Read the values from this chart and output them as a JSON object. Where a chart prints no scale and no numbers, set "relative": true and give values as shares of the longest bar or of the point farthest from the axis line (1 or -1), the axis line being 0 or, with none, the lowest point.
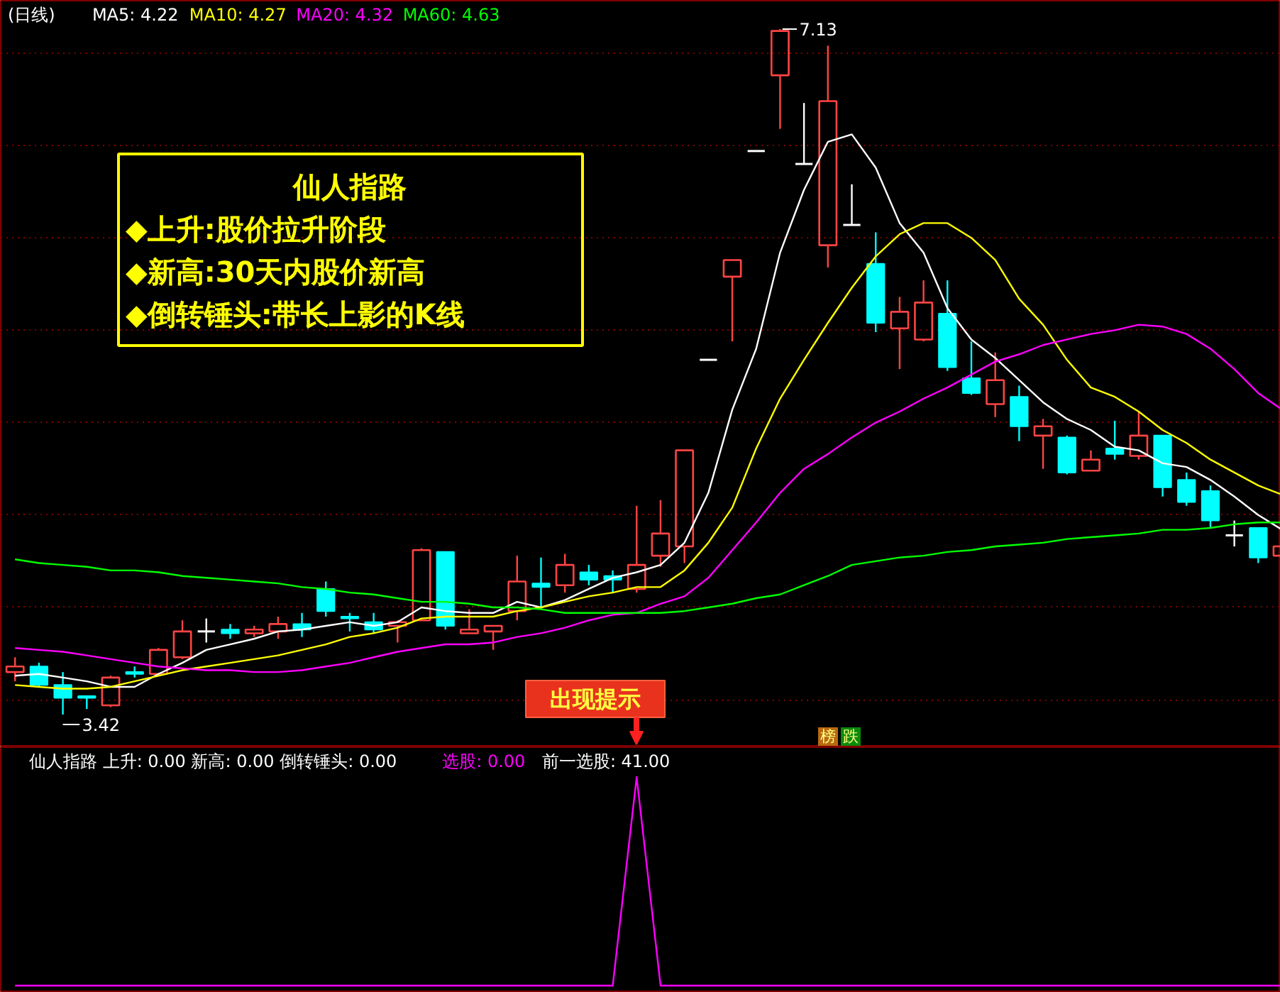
{
  "chart_data": [
    {
      "type": "candlestick",
      "title": "(日线)",
      "grid": "y",
      "categories": [
        null,
        null,
        null,
        null,
        null,
        null,
        null,
        null,
        null,
        null,
        null,
        null,
        null,
        null,
        null,
        null,
        null,
        null,
        null,
        null,
        null,
        null,
        null,
        null,
        null,
        null,
        null,
        null,
        null,
        null,
        null,
        null,
        null,
        null,
        null,
        null,
        null,
        null,
        null,
        null,
        null,
        null,
        null,
        null,
        null,
        null,
        null,
        null,
        null,
        null,
        null,
        null,
        null,
        null
      ],
      "ohlc": [
        [
          3.65,
          3.73,
          3.6,
          3.68
        ],
        [
          3.68,
          3.7,
          3.57,
          3.58
        ],
        [
          3.58,
          3.65,
          3.42,
          3.51
        ],
        [
          3.52,
          3.52,
          3.45,
          3.51
        ],
        [
          3.47,
          3.63,
          3.46,
          3.62
        ],
        [
          3.65,
          3.68,
          3.62,
          3.64
        ],
        [
          3.64,
          3.78,
          3.63,
          3.77
        ],
        [
          3.73,
          3.93,
          3.72,
          3.87
        ],
        [
          3.87,
          3.94,
          3.81,
          3.87
        ],
        [
          3.88,
          3.91,
          3.83,
          3.86
        ],
        [
          3.86,
          3.9,
          3.84,
          3.88
        ],
        [
          3.87,
          3.95,
          3.83,
          3.91
        ],
        [
          3.91,
          3.97,
          3.84,
          3.88
        ],
        [
          4.1,
          4.14,
          3.95,
          3.98
        ],
        [
          3.95,
          3.97,
          3.87,
          3.94
        ],
        [
          3.92,
          3.97,
          3.86,
          3.88
        ],
        [
          3.9,
          3.93,
          3.81,
          3.92
        ],
        [
          3.93,
          4.32,
          3.93,
          4.31
        ],
        [
          4.3,
          4.3,
          3.88,
          3.9
        ],
        [
          3.86,
          3.99,
          3.86,
          3.88
        ],
        [
          3.87,
          3.9,
          3.77,
          3.9
        ],
        [
          3.98,
          4.28,
          3.93,
          4.14
        ],
        [
          4.13,
          4.27,
          3.99,
          4.11
        ],
        [
          4.12,
          4.29,
          4.08,
          4.23
        ],
        [
          4.19,
          4.23,
          4.12,
          4.15
        ],
        [
          4.17,
          4.2,
          4.08,
          4.15
        ],
        [
          4.1,
          4.55,
          4.08,
          4.23
        ],
        [
          4.28,
          4.58,
          4.22,
          4.4
        ],
        [
          4.33,
          4.85,
          4.24,
          4.85
        ],
        [
          5.34,
          5.34,
          5.34,
          5.34
        ],
        [
          5.79,
          5.88,
          5.44,
          5.88
        ],
        [
          6.47,
          6.47,
          6.47,
          6.47
        ],
        [
          6.88,
          7.13,
          6.59,
          7.12
        ],
        [
          6.4,
          6.73,
          6.4,
          6.4
        ],
        [
          5.96,
          7.04,
          5.84,
          6.74
        ],
        [
          6.07,
          6.29,
          6.07,
          6.07
        ],
        [
          5.86,
          6.03,
          5.49,
          5.54
        ],
        [
          5.51,
          5.68,
          5.29,
          5.6
        ],
        [
          5.45,
          5.77,
          5.44,
          5.65
        ],
        [
          5.59,
          5.77,
          5.28,
          5.3
        ],
        [
          5.24,
          5.44,
          5.15,
          5.16
        ],
        [
          5.1,
          5.38,
          5.03,
          5.23
        ],
        [
          5.14,
          5.2,
          4.9,
          4.98
        ],
        [
          4.93,
          5.02,
          4.75,
          4.98
        ],
        [
          4.92,
          4.93,
          4.72,
          4.73
        ],
        [
          4.74,
          4.85,
          4.74,
          4.8
        ],
        [
          4.86,
          5.01,
          4.8,
          4.83
        ],
        [
          4.82,
          5.06,
          4.8,
          4.93
        ],
        [
          4.93,
          4.93,
          4.6,
          4.65
        ],
        [
          4.69,
          4.73,
          4.55,
          4.57
        ],
        [
          4.63,
          4.66,
          4.43,
          4.47
        ],
        [
          4.39,
          4.47,
          4.33,
          4.39
        ],
        [
          4.43,
          4.43,
          4.24,
          4.27
        ],
        [
          4.28,
          4.33,
          4.28,
          4.33
        ]
      ],
      "colors": [
        "#ff4444",
        "#00ffff",
        "#00ffff",
        "#00ffff",
        "#ff4444",
        "#00ffff",
        "#ff4444",
        "#ff4444",
        "#ffffff",
        "#00ffff",
        "#ff4444",
        "#ff4444",
        "#00ffff",
        "#00ffff",
        "#00ffff",
        "#00ffff",
        "#ff4444",
        "#ff4444",
        "#00ffff",
        "#ff4444",
        "#ff4444",
        "#ff4444",
        "#00ffff",
        "#ff4444",
        "#00ffff",
        "#00ffff",
        "#ff4444",
        "#ff4444",
        "#ff4444",
        "#ffffff",
        "#ff4444",
        "#ffffff",
        "#ff4444",
        "#ffffff",
        "#ff4444",
        "#ffffff",
        "#00ffff",
        "#ff4444",
        "#ff4444",
        "#00ffff",
        "#00ffff",
        "#ff4444",
        "#00ffff",
        "#ff4444",
        "#00ffff",
        "#ff4444",
        "#00ffff",
        "#ff4444",
        "#00ffff",
        "#00ffff",
        "#00ffff",
        "#ffffff",
        "#00ffff",
        "#ff4444"
      ],
      "yticks": [
        {
          "value": 3.5,
          "label": null
        },
        {
          "value": 4.0,
          "label": null
        },
        {
          "value": 4.5,
          "label": null
        },
        {
          "value": 5.0,
          "label": null
        },
        {
          "value": 5.5,
          "label": null
        },
        {
          "value": 6.0,
          "label": null
        },
        {
          "value": 6.5,
          "label": null
        },
        {
          "value": 7.0,
          "label": null
        }
      ],
      "series": [
        {
          "type": "line",
          "name": "MA5: 4.22",
          "color": "#ffffff",
          "values": [
            3.63,
            3.64,
            3.62,
            3.6,
            3.57,
            3.57,
            3.64,
            3.7,
            3.77,
            3.8,
            3.83,
            3.87,
            3.88,
            3.9,
            3.92,
            3.9,
            3.92,
            4.0,
            3.98,
            3.97,
            3.97,
            4.03,
            4.0,
            4.04,
            4.1,
            4.16,
            4.19,
            4.23,
            4.35,
            4.62,
            5.07,
            5.4,
            5.92,
            6.26,
            6.52,
            6.56,
            6.38,
            6.08,
            5.92,
            5.62,
            5.45,
            5.35,
            5.23,
            5.11,
            5.02,
            4.96,
            4.87,
            4.85,
            4.78,
            4.76,
            4.69,
            4.6,
            4.5,
            4.42
          ]
        },
        {
          "type": "line",
          "name": "MA10: 4.27",
          "color": "#ffff00",
          "values": [
            3.58,
            3.57,
            3.56,
            3.56,
            3.57,
            3.6,
            3.63,
            3.66,
            3.68,
            3.7,
            3.72,
            3.74,
            3.77,
            3.8,
            3.84,
            3.86,
            3.89,
            3.94,
            3.95,
            3.95,
            3.95,
            3.98,
            4.0,
            4.03,
            4.06,
            4.08,
            4.11,
            4.11,
            4.2,
            4.35,
            4.54,
            4.86,
            5.13,
            5.34,
            5.54,
            5.73,
            5.9,
            6.02,
            6.08,
            6.08,
            6.0,
            5.88,
            5.67,
            5.53,
            5.34,
            5.19,
            5.14,
            5.06,
            4.96,
            4.89,
            4.8,
            4.73,
            4.66,
            4.61
          ]
        },
        {
          "type": "line",
          "name": "MA20: 4.32",
          "color": "#ff00ff",
          "values": [
            3.78,
            3.77,
            3.76,
            3.74,
            3.72,
            3.7,
            3.68,
            3.67,
            3.66,
            3.66,
            3.65,
            3.65,
            3.66,
            3.68,
            3.7,
            3.73,
            3.76,
            3.78,
            3.8,
            3.8,
            3.81,
            3.84,
            3.86,
            3.89,
            3.93,
            3.96,
            3.97,
            4.02,
            4.06,
            4.16,
            4.31,
            4.46,
            4.62,
            4.75,
            4.83,
            4.92,
            5.0,
            5.06,
            5.13,
            5.19,
            5.26,
            5.33,
            5.37,
            5.42,
            5.45,
            5.48,
            5.5,
            5.53,
            5.52,
            5.48,
            5.4,
            5.29,
            5.16,
            5.07
          ]
        },
        {
          "type": "line",
          "name": "MA60: 4.63",
          "color": "#00ff00",
          "values": [
            4.26,
            4.24,
            4.23,
            4.22,
            4.2,
            4.2,
            4.19,
            4.17,
            4.16,
            4.15,
            4.14,
            4.13,
            4.11,
            4.1,
            4.08,
            4.07,
            4.05,
            4.03,
            4.03,
            4.02,
            4.0,
            4.0,
            3.99,
            3.97,
            3.97,
            3.97,
            3.97,
            3.97,
            3.98,
            4.0,
            4.02,
            4.05,
            4.07,
            4.12,
            4.17,
            4.23,
            4.25,
            4.27,
            4.28,
            4.3,
            4.31,
            4.33,
            4.34,
            4.35,
            4.37,
            4.38,
            4.39,
            4.4,
            4.42,
            4.42,
            4.43,
            4.45,
            4.46,
            4.46
          ]
        }
      ],
      "annotations": [
        "仙人指路",
        "◆上升:股价拉升阶段",
        "◆新高:30天内股价新高",
        "◆倒转锤头:带长上影的K线",
        "出现提示",
        "榜",
        "跌",
        "7.13",
        "3.42"
      ]
    },
    {
      "type": "line",
      "relative": true,
      "title": "仙人指路 上升: 0.00 新高: 0.00 倒转锤头: 0.00",
      "categories": [
        null,
        null,
        null,
        null,
        null,
        null,
        null,
        null,
        null,
        null,
        null,
        null,
        null,
        null,
        null,
        null,
        null,
        null,
        null,
        null,
        null,
        null,
        null,
        null,
        null,
        null,
        null,
        null,
        null,
        null,
        null,
        null,
        null,
        null,
        null,
        null,
        null,
        null,
        null,
        null,
        null,
        null,
        null,
        null,
        null,
        null,
        null,
        null,
        null,
        null,
        null,
        null,
        null,
        null
      ],
      "series": [
        {
          "name": "选股: 0.00",
          "color": "#ff00ff",
          "values": [
            0,
            0,
            0,
            0,
            0,
            0,
            0,
            0,
            0,
            0,
            0,
            0,
            0,
            0,
            0,
            0,
            0,
            0,
            0,
            0,
            0,
            0,
            0,
            0,
            0,
            0,
            1,
            0,
            0,
            0,
            0,
            0,
            0,
            0,
            0,
            0,
            0,
            0,
            0,
            0,
            0,
            0,
            0,
            0,
            0,
            0,
            0,
            0,
            0,
            0,
            0,
            0,
            0,
            0
          ]
        }
      ],
      "annotations": [
        "前一选股: 41.00"
      ]
    }
  ]
}
